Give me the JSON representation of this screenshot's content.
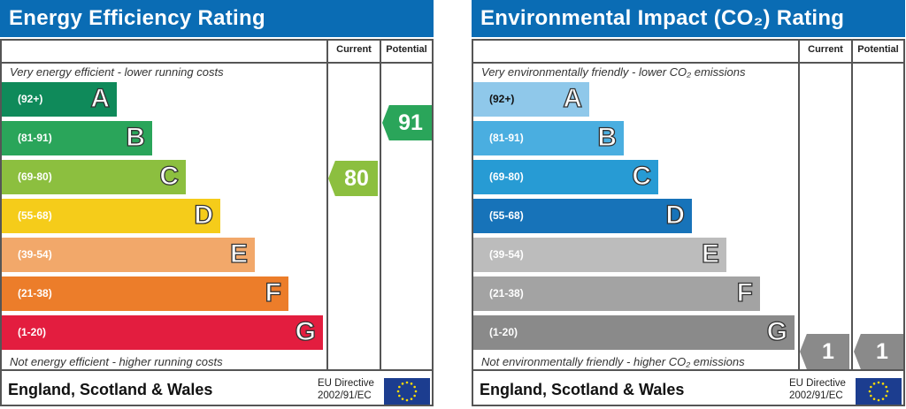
{
  "chart_data": [
    {
      "type": "bar",
      "title": "Energy Efficiency Rating",
      "top_caption": "Very energy efficient - lower running costs",
      "bottom_caption": "Not energy efficient - higher running costs",
      "columns": [
        "Current",
        "Potential"
      ],
      "bands": [
        {
          "range": "(92+)",
          "letter": "A",
          "color": "#0f8a5a"
        },
        {
          "range": "(81-91)",
          "letter": "B",
          "color": "#2aa55a"
        },
        {
          "range": "(69-80)",
          "letter": "C",
          "color": "#8cbf3f"
        },
        {
          "range": "(55-68)",
          "letter": "D",
          "color": "#f5cc1a"
        },
        {
          "range": "(39-54)",
          "letter": "E",
          "color": "#f2a86a"
        },
        {
          "range": "(21-38)",
          "letter": "F",
          "color": "#ec7d2a"
        },
        {
          "range": "(1-20)",
          "letter": "G",
          "color": "#e31d3f"
        }
      ],
      "current": {
        "value": "80",
        "color": "#8cbf3f"
      },
      "potential": {
        "value": "91",
        "color": "#2aa55a"
      },
      "footer": "England, Scotland & Wales",
      "directive": [
        "EU Directive",
        "2002/91/EC"
      ]
    },
    {
      "type": "bar",
      "title": "Environmental Impact (CO₂) Rating",
      "top_caption": "Very environmentally friendly - lower CO₂ emissions",
      "bottom_caption": "Not environmentally friendly - higher CO₂ emissions",
      "columns": [
        "Current",
        "Potential"
      ],
      "bands": [
        {
          "range": "(92+)",
          "letter": "A",
          "color": "#8fc8ea"
        },
        {
          "range": "(81-91)",
          "letter": "B",
          "color": "#4aaee0"
        },
        {
          "range": "(69-80)",
          "letter": "C",
          "color": "#279bd4"
        },
        {
          "range": "(55-68)",
          "letter": "D",
          "color": "#1773b9"
        },
        {
          "range": "(39-54)",
          "letter": "E",
          "color": "#bcbcbc"
        },
        {
          "range": "(21-38)",
          "letter": "F",
          "color": "#a3a3a3"
        },
        {
          "range": "(1-20)",
          "letter": "G",
          "color": "#8a8a8a"
        }
      ],
      "current": {
        "value": "1",
        "color": "#8a8a8a"
      },
      "potential": {
        "value": "1",
        "color": "#8a8a8a"
      },
      "footer": "England, Scotland & Wales",
      "directive": [
        "EU Directive",
        "2002/91/EC"
      ]
    }
  ]
}
